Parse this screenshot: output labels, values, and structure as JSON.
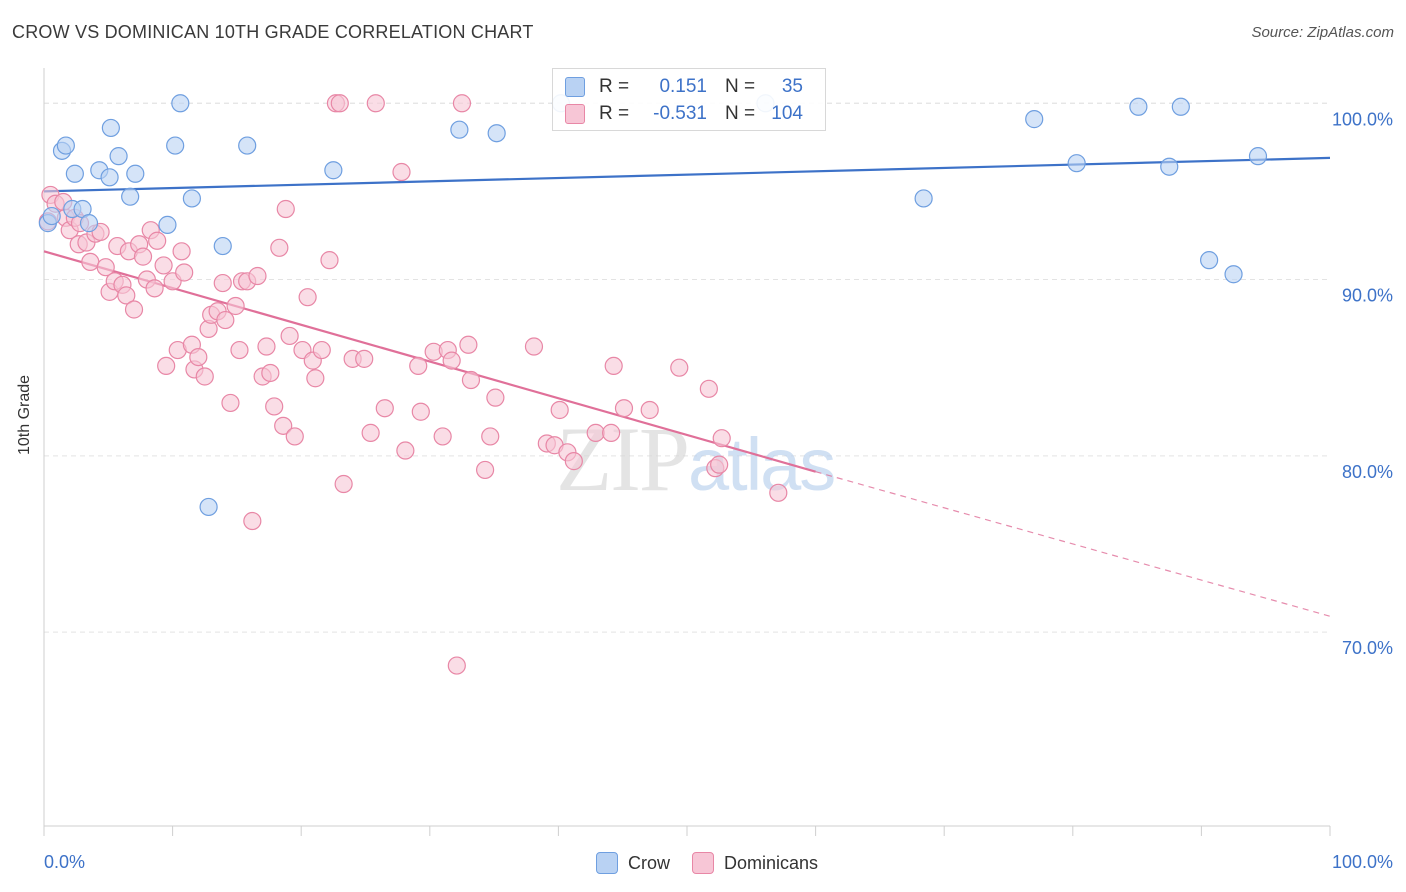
{
  "title": "CROW VS DOMINICAN 10TH GRADE CORRELATION CHART",
  "source": "Source: ZipAtlas.com",
  "watermark": "ZIPatlas",
  "legend_top": [
    {
      "r_label": "R =",
      "r_value": "0.151",
      "n_label": "N =",
      "n_value": "35",
      "color": "#6f9fe0",
      "fill": "#b9d2f3"
    },
    {
      "r_label": "R =",
      "r_value": "-0.531",
      "n_label": "N =",
      "n_value": "104",
      "color": "#e887a6",
      "fill": "#f7c6d6"
    }
  ],
  "legend_bottom": [
    {
      "label": "Crow",
      "color": "#6f9fe0",
      "fill": "#b9d2f3"
    },
    {
      "label": "Dominicans",
      "color": "#e887a6",
      "fill": "#f7c6d6"
    }
  ],
  "chart_data": {
    "type": "scatter",
    "title": "CROW VS DOMINICAN 10TH GRADE CORRELATION CHART",
    "xlabel": "",
    "ylabel": "10th Grade",
    "xlim": [
      0,
      100
    ],
    "ylim": [
      59,
      102
    ],
    "x_tick_labels": [
      "0.0%",
      "100.0%"
    ],
    "y_ticks": [
      70,
      80,
      90,
      100
    ],
    "y_tick_labels": [
      "70.0%",
      "80.0%",
      "90.0%",
      "100.0%"
    ],
    "grid": true,
    "legend_position": "top-center",
    "series": [
      {
        "name": "Crow",
        "color": "#3d72c8",
        "point_fill": "#b9d2f3",
        "point_stroke": "#6f9fe0",
        "trend": {
          "x0": 0,
          "y0": 95.0,
          "x1": 100,
          "y1": 96.9
        },
        "points": [
          [
            0.3,
            93.2
          ],
          [
            0.6,
            93.6
          ],
          [
            1.4,
            97.3
          ],
          [
            1.7,
            97.6
          ],
          [
            2.4,
            96.0
          ],
          [
            2.2,
            94.0
          ],
          [
            3.0,
            94.0
          ],
          [
            3.5,
            93.2
          ],
          [
            4.3,
            96.2
          ],
          [
            5.1,
            95.8
          ],
          [
            5.2,
            98.6
          ],
          [
            5.8,
            97.0
          ],
          [
            6.7,
            94.7
          ],
          [
            7.1,
            96.0
          ],
          [
            9.6,
            93.1
          ],
          [
            10.2,
            97.6
          ],
          [
            10.6,
            100.0
          ],
          [
            11.5,
            94.6
          ],
          [
            12.8,
            77.1
          ],
          [
            13.9,
            91.9
          ],
          [
            15.8,
            97.6
          ],
          [
            22.5,
            96.2
          ],
          [
            32.3,
            98.5
          ],
          [
            35.2,
            98.3
          ],
          [
            40.2,
            100.0
          ],
          [
            56.1,
            100.0
          ],
          [
            68.4,
            94.6
          ],
          [
            77.0,
            99.1
          ],
          [
            80.3,
            96.6
          ],
          [
            85.1,
            99.8
          ],
          [
            87.5,
            96.4
          ],
          [
            88.4,
            99.8
          ],
          [
            90.6,
            91.1
          ],
          [
            92.5,
            90.3
          ],
          [
            94.4,
            97.0
          ]
        ]
      },
      {
        "name": "Dominicans",
        "color": "#e07099",
        "point_fill": "#f7c6d6",
        "point_stroke": "#e887a6",
        "trend": {
          "x0": 0,
          "y0": 91.6,
          "x1": 60,
          "y1": 79.1,
          "dash_to_x": 100,
          "dash_to_y": 70.9
        },
        "points": [
          [
            0.3,
            93.3
          ],
          [
            0.5,
            94.8
          ],
          [
            0.9,
            94.3
          ],
          [
            1.5,
            94.4
          ],
          [
            1.7,
            93.5
          ],
          [
            2.0,
            92.8
          ],
          [
            2.4,
            93.5
          ],
          [
            2.8,
            93.2
          ],
          [
            2.7,
            92.0
          ],
          [
            3.3,
            92.1
          ],
          [
            3.6,
            91.0
          ],
          [
            4.0,
            92.6
          ],
          [
            4.4,
            92.7
          ],
          [
            4.8,
            90.7
          ],
          [
            5.1,
            89.3
          ],
          [
            5.5,
            89.9
          ],
          [
            5.7,
            91.9
          ],
          [
            6.1,
            89.7
          ],
          [
            6.4,
            89.1
          ],
          [
            6.6,
            91.6
          ],
          [
            7.0,
            88.3
          ],
          [
            7.4,
            92.0
          ],
          [
            7.7,
            91.3
          ],
          [
            8.0,
            90.0
          ],
          [
            8.3,
            92.8
          ],
          [
            8.6,
            89.5
          ],
          [
            8.8,
            92.2
          ],
          [
            9.3,
            90.8
          ],
          [
            9.5,
            85.1
          ],
          [
            10.0,
            89.9
          ],
          [
            10.4,
            86.0
          ],
          [
            10.7,
            91.6
          ],
          [
            10.9,
            90.4
          ],
          [
            11.5,
            86.3
          ],
          [
            11.7,
            84.9
          ],
          [
            12.0,
            85.6
          ],
          [
            12.5,
            84.5
          ],
          [
            12.8,
            87.2
          ],
          [
            13.0,
            88.0
          ],
          [
            13.5,
            88.2
          ],
          [
            13.9,
            89.8
          ],
          [
            14.1,
            87.7
          ],
          [
            14.5,
            83.0
          ],
          [
            14.9,
            88.5
          ],
          [
            15.2,
            86.0
          ],
          [
            15.4,
            89.9
          ],
          [
            15.8,
            89.9
          ],
          [
            16.2,
            76.3
          ],
          [
            16.6,
            90.2
          ],
          [
            17.0,
            84.5
          ],
          [
            17.3,
            86.2
          ],
          [
            17.6,
            84.7
          ],
          [
            17.9,
            82.8
          ],
          [
            18.3,
            91.8
          ],
          [
            18.6,
            81.7
          ],
          [
            18.8,
            94.0
          ],
          [
            19.1,
            86.8
          ],
          [
            19.5,
            81.1
          ],
          [
            20.1,
            86.0
          ],
          [
            20.5,
            89.0
          ],
          [
            20.9,
            85.4
          ],
          [
            21.1,
            84.4
          ],
          [
            21.6,
            86.0
          ],
          [
            22.2,
            91.1
          ],
          [
            22.7,
            100.0
          ],
          [
            23.0,
            100.0
          ],
          [
            23.3,
            78.4
          ],
          [
            24.0,
            85.5
          ],
          [
            24.9,
            85.5
          ],
          [
            25.4,
            81.3
          ],
          [
            25.8,
            100.0
          ],
          [
            26.5,
            82.7
          ],
          [
            27.8,
            96.1
          ],
          [
            28.1,
            80.3
          ],
          [
            29.1,
            85.1
          ],
          [
            29.3,
            82.5
          ],
          [
            30.3,
            85.9
          ],
          [
            31.0,
            81.1
          ],
          [
            31.4,
            86.0
          ],
          [
            31.7,
            85.4
          ],
          [
            32.1,
            68.1
          ],
          [
            32.5,
            100.0
          ],
          [
            33.0,
            86.3
          ],
          [
            33.2,
            84.3
          ],
          [
            34.3,
            79.2
          ],
          [
            34.7,
            81.1
          ],
          [
            35.1,
            83.3
          ],
          [
            38.1,
            86.2
          ],
          [
            39.1,
            80.7
          ],
          [
            39.7,
            80.6
          ],
          [
            40.1,
            82.6
          ],
          [
            40.7,
            80.2
          ],
          [
            41.2,
            79.7
          ],
          [
            42.9,
            81.3
          ],
          [
            44.1,
            81.3
          ],
          [
            44.3,
            85.1
          ],
          [
            45.1,
            82.7
          ],
          [
            47.1,
            82.6
          ],
          [
            49.4,
            85.0
          ],
          [
            51.7,
            83.8
          ],
          [
            52.2,
            79.3
          ],
          [
            52.7,
            81.0
          ],
          [
            57.1,
            77.9
          ],
          [
            52.5,
            79.5
          ]
        ]
      }
    ]
  }
}
